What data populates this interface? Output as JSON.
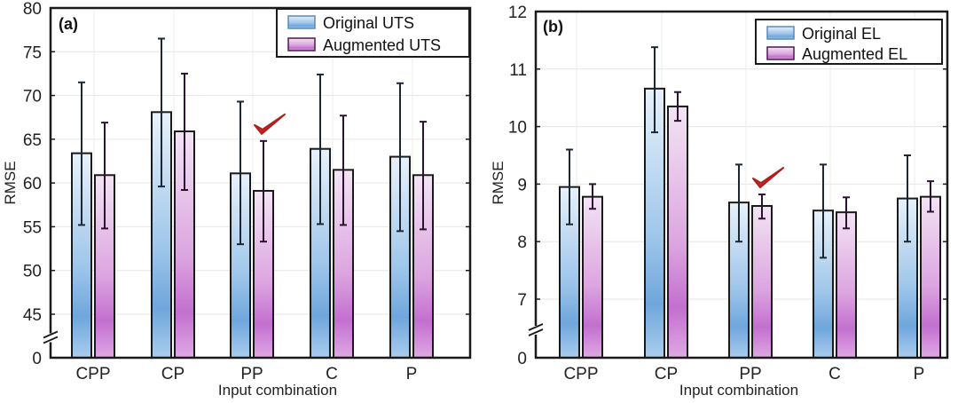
{
  "chart_data": [
    {
      "type": "bar",
      "panel_label": "(a)",
      "title": "",
      "xlabel": "Input combination",
      "ylabel": "RMSE",
      "categories": [
        "CPP",
        "CP",
        "PP",
        "C",
        "P"
      ],
      "ylim": [
        45,
        80
      ],
      "axis_break": true,
      "yticks": [
        45,
        50,
        55,
        60,
        65,
        70,
        75,
        80
      ],
      "ytick_labels": [
        "45",
        "50",
        "55",
        "60",
        "65",
        "70",
        "75",
        "80"
      ],
      "baseline_label": "0",
      "grid": true,
      "legend_position": "top-right",
      "highlight": {
        "category": "PP",
        "series": "Augmented UTS",
        "marker": "checkmark"
      },
      "series": [
        {
          "name": "Original UTS",
          "color": "#7fb0e0",
          "values": [
            63.4,
            68.1,
            61.1,
            63.9,
            63.0
          ],
          "err_low": [
            55.2,
            59.6,
            53.0,
            55.3,
            54.5
          ],
          "err_high": [
            71.5,
            76.5,
            69.3,
            72.4,
            71.4
          ]
        },
        {
          "name": "Augmented UTS",
          "color": "#cc7fd6",
          "values": [
            60.9,
            65.9,
            59.1,
            61.5,
            60.9
          ],
          "err_low": [
            54.8,
            59.2,
            53.3,
            55.2,
            54.7
          ],
          "err_high": [
            66.9,
            72.5,
            64.8,
            67.7,
            67.0
          ]
        }
      ]
    },
    {
      "type": "bar",
      "panel_label": "(b)",
      "title": "",
      "xlabel": "Input combination",
      "ylabel": "RMSE",
      "categories": [
        "CPP",
        "CP",
        "PP",
        "C",
        "P"
      ],
      "ylim": [
        7,
        12
      ],
      "axis_break": true,
      "yticks": [
        7,
        8,
        9,
        10,
        11,
        12
      ],
      "ytick_labels": [
        "7",
        "8",
        "9",
        "10",
        "11",
        "12"
      ],
      "baseline_label": "0",
      "grid": true,
      "legend_position": "top-right",
      "highlight": {
        "category": "PP",
        "series": "Augmented EL",
        "marker": "checkmark"
      },
      "series": [
        {
          "name": "Original EL",
          "color": "#7fb0e0",
          "values": [
            8.95,
            10.66,
            8.68,
            8.54,
            8.75
          ],
          "err_low": [
            8.3,
            9.9,
            8.0,
            7.72,
            8.0
          ],
          "err_high": [
            9.6,
            11.38,
            9.34,
            9.34,
            9.5
          ]
        },
        {
          "name": "Augmented EL",
          "color": "#cc7fd6",
          "values": [
            8.78,
            10.35,
            8.62,
            8.51,
            8.78
          ],
          "err_low": [
            8.57,
            10.1,
            8.4,
            8.23,
            8.52
          ],
          "err_high": [
            9.0,
            10.6,
            8.82,
            8.77,
            9.05
          ]
        }
      ]
    }
  ]
}
